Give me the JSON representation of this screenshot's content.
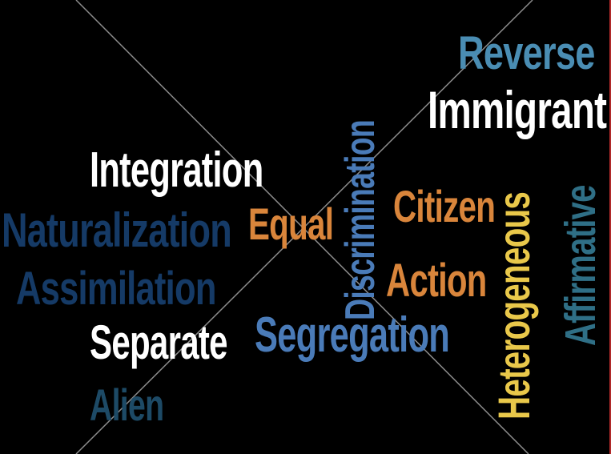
{
  "colors": {
    "background": "#000000",
    "white": "#ffffff",
    "orange": "#d9853b",
    "light_blue": "#4a8db3",
    "navy": "#153a66",
    "steel_blue": "#4a7bb8",
    "dark_teal": "#1d4a66",
    "yellow": "#e9c84a",
    "teal": "#2f6f86"
  },
  "words": {
    "reverse": "Reverse",
    "immigrant": "Immigrant",
    "integration": "Integration",
    "naturalization": "Naturalization",
    "equal": "Equal",
    "citizen": "Citizen",
    "discrimination": "Discrimination",
    "assimilation": "Assimilation",
    "action": "Action",
    "separate": "Separate",
    "segregation": "Segregation",
    "heterogeneous": "Heterogeneous",
    "affirmative": "Affirmative",
    "alien": "Alien"
  }
}
